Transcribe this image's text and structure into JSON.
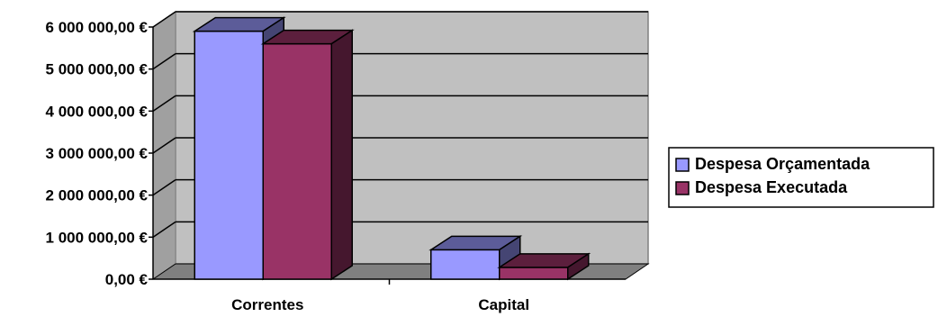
{
  "chart_data": {
    "type": "bar",
    "categories": [
      "Correntes",
      "Capital"
    ],
    "series": [
      {
        "name": "Despesa Orçamentada",
        "values": [
          5900000,
          700000
        ],
        "color": "#9999ff"
      },
      {
        "name": "Despesa Executada",
        "values": [
          5600000,
          280000
        ],
        "color": "#993366"
      }
    ],
    "ylim": [
      0,
      6000000
    ],
    "ytick_values": [
      0,
      1000000,
      2000000,
      3000000,
      4000000,
      5000000,
      6000000
    ],
    "ytick_labels": [
      "0,00 €",
      "1 000 000,00 €",
      "2 000 000,00 €",
      "3 000 000,00 €",
      "4 000 000,00 €",
      "5 000 000,00 €",
      "6 000 000,00 €"
    ],
    "grid": true,
    "three_d": true,
    "legend_position": "right",
    "plot_background": "#c0c0c0"
  }
}
